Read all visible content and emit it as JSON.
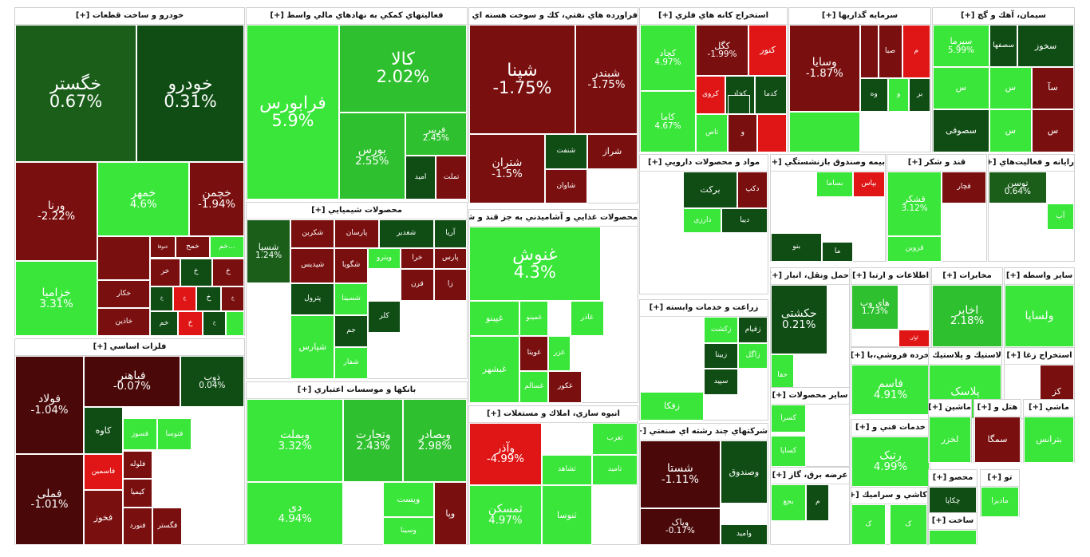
{
  "chart_data": {
    "type": "treemap",
    "colors": {
      "strong_pos": "#22dd22",
      "pos": "#2fc02f",
      "light_pos": "#39e639",
      "dark_pos": "#0f4d14",
      "neutral_pos": "#1a5e1a",
      "neg": "#7a0f0f",
      "strong_neg": "#e01616",
      "dark_neg": "#4a0808"
    },
    "sectors": [
      {
        "name": "خودرو و ساخت قطعات [+]",
        "tiles": [
          {
            "sym": "خگستر",
            "pct": "0.67%",
            "v": 0.67
          },
          {
            "sym": "خودرو",
            "pct": "0.31%",
            "v": 0.31
          },
          {
            "sym": "ورنا",
            "pct": "-2.22%",
            "v": -2.22
          },
          {
            "sym": "خمهر",
            "pct": "4.6%",
            "v": 4.6
          },
          {
            "sym": "خچمن",
            "pct": "-1.94%",
            "v": -1.94
          },
          {
            "sym": "خزامیا",
            "pct": "3.31%",
            "v": 3.31
          },
          {
            "sym": "",
            "pct": "",
            "v": -2
          },
          {
            "sym": "ختوقا",
            "pct": "",
            "v": -2
          },
          {
            "sym": "خمح",
            "pct": "",
            "v": -2
          },
          {
            "sym": "...خم",
            "pct": "",
            "v": 4
          },
          {
            "sym": "خکار",
            "pct": "",
            "v": -2
          },
          {
            "sym": "خر",
            "pct": "",
            "v": -2
          },
          {
            "sym": "خ",
            "pct": "",
            "v": 0.3
          },
          {
            "sym": "خ",
            "pct": "",
            "v": -2
          },
          {
            "sym": "خاذین",
            "pct": "",
            "v": -2
          },
          {
            "sym": "خ",
            "pct": "",
            "v": 0.3
          },
          {
            "sym": "خ",
            "pct": "",
            "v": -3
          },
          {
            "sym": "خ",
            "pct": "",
            "v": 0.3
          },
          {
            "sym": "خ",
            "pct": "",
            "v": -2
          },
          {
            "sym": "خم",
            "pct": "",
            "v": 0.3
          },
          {
            "sym": "خ",
            "pct": "",
            "v": -3
          },
          {
            "sym": "خ",
            "pct": "",
            "v": 0.3
          },
          {
            "sym": "",
            "pct": "",
            "v": 4
          }
        ]
      },
      {
        "name": "فعاليتهاي كمكي به نهادهاي مالي واسط [+]",
        "tiles": [
          {
            "sym": "فرابورس",
            "pct": "5.9%",
            "v": 5.9
          },
          {
            "sym": "کالا",
            "pct": "2.02%",
            "v": 2.02
          },
          {
            "sym": "بورس",
            "pct": "2.55%",
            "v": 2.55
          },
          {
            "sym": "فرییر",
            "pct": "2.45%",
            "v": 2.45
          },
          {
            "sym": "امید",
            "pct": "",
            "v": 0.5
          },
          {
            "sym": "تملت",
            "pct": "",
            "v": -1.5
          }
        ]
      },
      {
        "name": "فراورده هاي نفتي، كك و سوخت هسته اي [+]",
        "tiles": [
          {
            "sym": "شپنا",
            "pct": "-1.75%",
            "v": -1.75
          },
          {
            "sym": "شبندر",
            "pct": "-1.75%",
            "v": -1.75
          },
          {
            "sym": "شتران",
            "pct": "-1.5%",
            "v": -1.5
          },
          {
            "sym": "شنفت",
            "pct": "",
            "v": 0.2
          },
          {
            "sym": "شراز",
            "pct": "",
            "v": -1.5
          },
          {
            "sym": "شاوان",
            "pct": "",
            "v": -1.5
          }
        ]
      },
      {
        "name": "استخراج كانه هاي فلزي [+]",
        "tiles": [
          {
            "sym": "کچاد",
            "pct": "4.97%",
            "v": 4.97
          },
          {
            "sym": "کگل",
            "pct": "-1.99%",
            "v": -1.99
          },
          {
            "sym": "کنور",
            "pct": "",
            "v": -3
          },
          {
            "sym": "کروی",
            "pct": "",
            "v": -3.5
          },
          {
            "sym": "کچاد",
            "pct": "",
            "v": 0.2
          },
          {
            "sym": "کدما",
            "pct": "",
            "v": 0.2
          },
          {
            "sym": "کاما",
            "pct": "4.67%",
            "v": 4.67
          },
          {
            "sym": "تاص",
            "pct": "",
            "v": 4
          },
          {
            "sym": "و",
            "pct": "",
            "v": -2
          },
          {
            "sym": "",
            "pct": "",
            "v": -3.5
          },
          {
            "sym": "",
            "pct": "",
            "v": 0.2
          }
        ]
      },
      {
        "name": "سرمايه گذاريها [+]",
        "tiles": [
          {
            "sym": "وسایا",
            "pct": "-1.87%",
            "v": -1.87
          },
          {
            "sym": "",
            "pct": "",
            "v": -1.8
          },
          {
            "sym": "صبا",
            "pct": "",
            "v": -1.8
          },
          {
            "sym": "م",
            "pct": "",
            "v": -3.5
          },
          {
            "sym": "وه",
            "pct": "",
            "v": 0.3
          },
          {
            "sym": "و",
            "pct": "",
            "v": 4
          },
          {
            "sym": "بر",
            "pct": "",
            "v": 0.3
          },
          {
            "sym": "",
            "pct": "",
            "v": 4
          }
        ]
      },
      {
        "name": "سيمان، آهك و گچ [+]",
        "tiles": [
          {
            "sym": "سیرما",
            "pct": "5.99%",
            "v": 5.99
          },
          {
            "sym": "سخوز",
            "pct": "",
            "v": 0.3
          },
          {
            "sym": "سصفها",
            "pct": "",
            "v": 0.3
          },
          {
            "sym": "س",
            "pct": "",
            "v": 4
          },
          {
            "sym": "سآ",
            "pct": "",
            "v": -2
          },
          {
            "sym": "س",
            "pct": "",
            "v": 4
          },
          {
            "sym": "سصوفی",
            "pct": "",
            "v": 0.2
          },
          {
            "sym": "س",
            "pct": "",
            "v": 4
          },
          {
            "sym": "س",
            "pct": "",
            "v": -2
          }
        ]
      },
      {
        "name": "محصولات شيميايي [+]",
        "tiles": [
          {
            "sym": "شسپا",
            "pct": "1.24%",
            "v": 1.24
          },
          {
            "sym": "شکربن",
            "pct": "",
            "v": -2
          },
          {
            "sym": "پارسان",
            "pct": "",
            "v": -2
          },
          {
            "sym": "شغدیر",
            "pct": "",
            "v": 0.3
          },
          {
            "sym": "آریا",
            "pct": "",
            "v": 0.3
          },
          {
            "sym": "شپدیس",
            "pct": "",
            "v": -2
          },
          {
            "sym": "شگویا",
            "pct": "",
            "v": -2
          },
          {
            "sym": "ویترو",
            "pct": "",
            "v": 4
          },
          {
            "sym": "خرا",
            "pct": "",
            "v": -2
          },
          {
            "sym": "پارس",
            "pct": "",
            "v": -2
          },
          {
            "sym": "پترول",
            "pct": "",
            "v": 0.3
          },
          {
            "sym": "شسینا",
            "pct": "",
            "v": 4
          },
          {
            "sym": "زا",
            "pct": "",
            "v": -2
          },
          {
            "sym": "قرن",
            "pct": "",
            "v": -2
          },
          {
            "sym": "شپارس",
            "pct": "",
            "v": 4
          },
          {
            "sym": "جم",
            "pct": "",
            "v": 0.2
          },
          {
            "sym": "کلر",
            "pct": "",
            "v": 0.2
          },
          {
            "sym": "شفار",
            "pct": "",
            "v": 4
          }
        ]
      },
      {
        "name": "محصولات غذايي و آشاميدني به جز قند و شكر [+]",
        "tiles": [
          {
            "sym": "غنوش",
            "pct": "4.3%",
            "v": 4.3
          },
          {
            "sym": "غپینو",
            "pct": "",
            "v": 4
          },
          {
            "sym": "غمینو",
            "pct": "",
            "v": 4
          },
          {
            "sym": "غاذر",
            "pct": "",
            "v": 4
          },
          {
            "sym": "غویتا",
            "pct": "",
            "v": -2
          },
          {
            "sym": "غسالم",
            "pct": "",
            "v": 4
          },
          {
            "sym": "غبشهر",
            "pct": "",
            "v": 4
          },
          {
            "sym": "غکور",
            "pct": "",
            "v": -2
          },
          {
            "sym": "غزر",
            "pct": "",
            "v": 4
          }
        ]
      },
      {
        "name": "بانكها و موسسات اعتباري [+]",
        "tiles": [
          {
            "sym": "وبملت",
            "pct": "3.32%",
            "v": 3.32
          },
          {
            "sym": "وتجارت",
            "pct": "2.43%",
            "v": 2.43
          },
          {
            "sym": "وبصادر",
            "pct": "2.98%",
            "v": 2.98
          },
          {
            "sym": "دی",
            "pct": "4.94%",
            "v": 4.94
          },
          {
            "sym": "ویست",
            "pct": "",
            "v": 4
          },
          {
            "sym": "وسینا",
            "pct": "",
            "v": 4
          },
          {
            "sym": "وپا",
            "pct": "",
            "v": -2
          }
        ]
      },
      {
        "name": "فلزات اساسي [+]",
        "tiles": [
          {
            "sym": "فولاد",
            "pct": "-1.04%",
            "v": -1.04
          },
          {
            "sym": "فباهنر",
            "pct": "-0.07%",
            "v": -0.07
          },
          {
            "sym": "ذوب",
            "pct": "0.04%",
            "v": 0.04
          },
          {
            "sym": "فملی",
            "pct": "-1.01%",
            "v": -1.01
          },
          {
            "sym": "کاوه",
            "pct": "",
            "v": 0.2
          },
          {
            "sym": "فسوز",
            "pct": "",
            "v": 4
          },
          {
            "sym": "فتوسا",
            "pct": "",
            "v": 4
          },
          {
            "sym": "فاسمین",
            "pct": "",
            "v": -3.5
          },
          {
            "sym": "فلوله",
            "pct": "",
            "v": -2
          },
          {
            "sym": "کیمیا",
            "pct": "",
            "v": -2
          },
          {
            "sym": "فنورد",
            "pct": "",
            "v": -2
          },
          {
            "sym": "فخوز",
            "pct": "",
            "v": -2
          },
          {
            "sym": "فگستر",
            "pct": "",
            "v": -2
          }
        ]
      },
      {
        "name": "انبوه سازي، املاك و مستغلات [+]",
        "tiles": [
          {
            "sym": "وآذر",
            "pct": "-4.99%",
            "v": -4.99
          },
          {
            "sym": "ثغرب",
            "pct": "",
            "v": 4
          },
          {
            "sym": "ثشاهد",
            "pct": "",
            "v": 4
          },
          {
            "sym": "تامید",
            "pct": "",
            "v": 4
          },
          {
            "sym": "ثمسکن",
            "pct": "4.97%",
            "v": 4.97
          },
          {
            "sym": "ثنوسا",
            "pct": "",
            "v": 4
          }
        ]
      },
      {
        "name": "مواد و محصولات دارويي [+]",
        "tiles": [
          {
            "sym": "برکت",
            "pct": "",
            "v": 0.3
          },
          {
            "sym": "دکپ",
            "pct": "",
            "v": -2
          },
          {
            "sym": "دارزی",
            "pct": "",
            "v": 4
          },
          {
            "sym": "دیبا",
            "pct": "",
            "v": 0.3
          }
        ]
      },
      {
        "name": "زراعت و خدمات وابسته [+]",
        "tiles": [
          {
            "sym": "زقیام",
            "pct": "",
            "v": 0.3
          },
          {
            "sym": "زکشت",
            "pct": "",
            "v": 4
          },
          {
            "sym": "زاگل",
            "pct": "",
            "v": 4
          },
          {
            "sym": "زبینا",
            "pct": "",
            "v": 0.3
          },
          {
            "sym": "سپید",
            "pct": "",
            "v": 0.3
          },
          {
            "sym": "زفکا",
            "pct": "",
            "v": 4
          }
        ]
      },
      {
        "name": "شركتهاي چند رشته اي صنعتي [+]",
        "tiles": [
          {
            "sym": "شستا",
            "pct": "-1.11%",
            "v": -1.11
          },
          {
            "sym": "وصندوق",
            "pct": "",
            "v": 0.3
          },
          {
            "sym": "وامید",
            "pct": "",
            "v": 0.2
          },
          {
            "sym": "وپاک",
            "pct": "-0.17%",
            "v": -0.17
          }
        ]
      },
      {
        "name": "بيمه وصندوق بازنشستگي [+]",
        "tiles": [
          {
            "sym": "بساما",
            "pct": "",
            "v": 4
          },
          {
            "sym": "بپاس",
            "pct": "",
            "v": -3.5
          },
          {
            "sym": "بنو",
            "pct": "",
            "v": 0.3
          },
          {
            "sym": "ما",
            "pct": "",
            "v": 0.2
          }
        ]
      },
      {
        "name": "قند و شكر [+]",
        "tiles": [
          {
            "sym": "قشکر",
            "pct": "3.12%",
            "v": 3.12
          },
          {
            "sym": "قچار",
            "pct": "",
            "v": -2
          },
          {
            "sym": "قزوین",
            "pct": "",
            "v": 4
          }
        ]
      },
      {
        "name": "رايانه و فعاليت‌هاي [+]",
        "tiles": [
          {
            "sym": "توسن",
            "pct": "0.64%",
            "v": 0.64
          },
          {
            "sym": "آپ",
            "pct": "",
            "v": 4
          }
        ]
      },
      {
        "name": "حمل ونقل، انبار [+]",
        "tiles": [
          {
            "sym": "حکشتی",
            "pct": "0.21%",
            "v": 0.21
          },
          {
            "sym": "حفا",
            "pct": "",
            "v": 4
          }
        ]
      },
      {
        "name": "اطلاعات و ارتبا [+]",
        "tiles": [
          {
            "sym": "های وب",
            "pct": "1.73%",
            "v": 1.73
          },
          {
            "sym": "اوان",
            "pct": "",
            "v": -3.5
          }
        ]
      },
      {
        "name": "مخابرات [+]",
        "tiles": [
          {
            "sym": "اخابر",
            "pct": "2.18%",
            "v": 2.18
          }
        ]
      },
      {
        "name": "ساير واسطه [+]",
        "tiles": [
          {
            "sym": "ولساپا",
            "pct": "",
            "v": 4
          }
        ]
      },
      {
        "name": "خرده فروشي،با [+]",
        "tiles": [
          {
            "sym": "فاسم",
            "pct": "4.91%",
            "v": 4.91
          }
        ]
      },
      {
        "name": "خدمات فني و [+]",
        "tiles": [
          {
            "sym": "رتیک",
            "pct": "4.99%",
            "v": 4.99
          }
        ]
      },
      {
        "name": "لاستيك و پلاستيك [+]",
        "tiles": [
          {
            "sym": "پلاسک",
            "pct": "",
            "v": 4
          }
        ]
      },
      {
        "name": "استخراج زغا [+]",
        "tiles": [
          {
            "sym": "کز",
            "pct": "",
            "v": -2
          }
        ]
      },
      {
        "name": "ماشين [+]",
        "tiles": [
          {
            "sym": "لخزر",
            "pct": "",
            "v": 4
          }
        ]
      },
      {
        "name": "هتل و [+]",
        "tiles": [
          {
            "sym": "سمگا",
            "pct": "",
            "v": -2
          }
        ]
      },
      {
        "name": "ماشي [+]",
        "tiles": [
          {
            "sym": "بترانس",
            "pct": "",
            "v": 4
          }
        ]
      },
      {
        "name": "ساير محصولات [+]",
        "tiles": [
          {
            "sym": "کسرا",
            "pct": "",
            "v": 4
          },
          {
            "sym": "کساپا",
            "pct": "",
            "v": 4
          }
        ]
      },
      {
        "name": "عرضه برق، گاز [+]",
        "tiles": [
          {
            "sym": "بجع",
            "pct": "",
            "v": 4
          },
          {
            "sym": "م",
            "pct": "",
            "v": 0.2
          }
        ]
      },
      {
        "name": "كاشي و سراميك [+]",
        "tiles": [
          {
            "sym": "ک",
            "pct": "",
            "v": 4
          },
          {
            "sym": "ک",
            "pct": "",
            "v": 4
          }
        ]
      },
      {
        "name": "محصو [+]",
        "tiles": [
          {
            "sym": "چکاپا",
            "pct": "",
            "v": 0.2
          }
        ]
      },
      {
        "name": "تو [+]",
        "tiles": [
          {
            "sym": "مادیرا",
            "pct": "",
            "v": 4
          }
        ]
      },
      {
        "name": "ساخت [+]",
        "tiles": [
          {
            "sym": "",
            "pct": "",
            "v": 4
          }
        ]
      }
    ]
  }
}
